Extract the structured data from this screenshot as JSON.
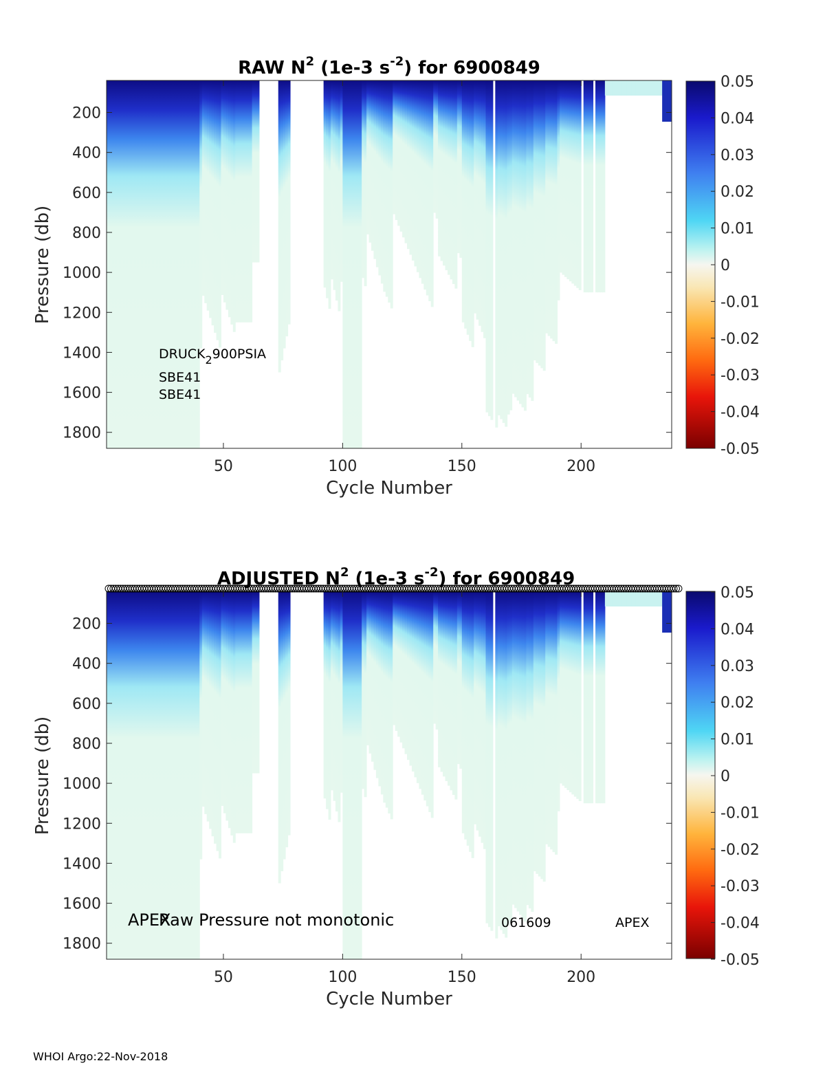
{
  "footer": "WHOI Argo:22-Nov-2018",
  "chart_data": [
    {
      "type": "heatmap",
      "title_main": "RAW N",
      "title_sup": "2",
      "title_mid": " (1e-3 s",
      "title_sup2": "-2",
      "title_end": ") for 6900849",
      "xlabel": "Cycle Number",
      "ylabel": "Pressure (db)",
      "xlim": [
        1,
        238
      ],
      "ylim": [
        40,
        1880
      ],
      "y_reversed": true,
      "xticks": [
        "50",
        "100",
        "150",
        "200"
      ],
      "yticks": [
        "200",
        "400",
        "600",
        "800",
        "1000",
        "1200",
        "1400",
        "1600",
        "1800"
      ],
      "colorbar": {
        "colormap": "jet-diverging",
        "clim": [
          -0.05,
          0.05
        ],
        "ticks": [
          "0.05",
          "0.04",
          "0.03",
          "0.02",
          "0.01",
          "0",
          "-0.01",
          "-0.02",
          "-0.03",
          "-0.04",
          "-0.05"
        ]
      },
      "annotations": [
        {
          "text": "DRUCK",
          "sub": "2",
          "rest": "900PSIA"
        },
        {
          "text": "SBE41"
        },
        {
          "text": "SBE41"
        }
      ]
    },
    {
      "type": "heatmap",
      "title_main": "ADJUSTED N",
      "title_sup": "2",
      "title_mid": " (1e-3 s",
      "title_sup2": "-2",
      "title_end": ") for 6900849",
      "xlabel": "Cycle Number",
      "ylabel": "Pressure (db)",
      "xlim": [
        1,
        238
      ],
      "ylim": [
        40,
        1880
      ],
      "y_reversed": true,
      "xticks": [
        "50",
        "100",
        "150",
        "200"
      ],
      "yticks": [
        "200",
        "400",
        "600",
        "800",
        "1000",
        "1200",
        "1400",
        "1600",
        "1800"
      ],
      "colorbar": {
        "colormap": "jet-diverging",
        "clim": [
          -0.05,
          0.05
        ],
        "ticks": [
          "0.05",
          "0.04",
          "0.03",
          "0.02",
          "0.01",
          "0",
          "-0.01",
          "-0.02",
          "-0.03",
          "-0.04",
          "-0.05"
        ]
      },
      "annotations": [
        {
          "text": "APEX"
        },
        {
          "text": "Raw Pressure not monotonic"
        },
        {
          "text": "061609"
        },
        {
          "text": "APEX"
        }
      ],
      "qc_markers": "circles along top edge at each cycle"
    }
  ]
}
